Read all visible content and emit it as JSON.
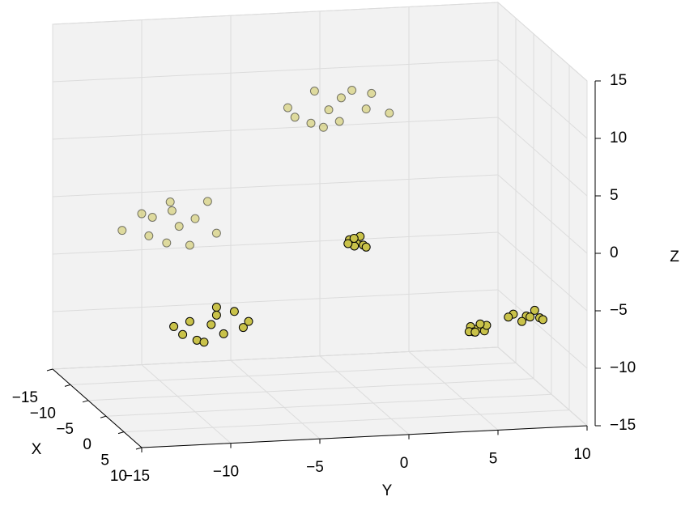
{
  "chart_data": {
    "type": "scatter3d",
    "xlabel": "X",
    "ylabel": "Y",
    "zlabel": "Z",
    "xlim": [
      -15,
      10
    ],
    "ylim": [
      -15,
      10
    ],
    "zlim": [
      -15,
      15
    ],
    "xticks": [
      {
        "value": -15,
        "label": "−15"
      },
      {
        "value": -10,
        "label": "−10"
      },
      {
        "value": -5,
        "label": "−5"
      },
      0,
      5,
      10
    ],
    "yticks": [
      {
        "value": -15,
        "label": "−15"
      },
      {
        "value": -10,
        "label": "−10"
      },
      {
        "value": -5,
        "label": "−5"
      },
      0,
      5,
      10
    ],
    "zticks": [
      {
        "value": -15,
        "label": "−15"
      },
      {
        "value": -10,
        "label": "−10"
      },
      {
        "value": -5,
        "label": "−5"
      },
      0,
      5,
      10,
      15
    ],
    "grid": true,
    "color": "#c9c24a",
    "x": [
      -8,
      -7.5,
      -8.5,
      -7,
      -8,
      -9,
      -7.5,
      -8.5,
      -8,
      -7,
      -9,
      -8,
      -8,
      -7.5,
      -8.5,
      -7,
      -8,
      -9,
      -7.5,
      -8.5,
      -8,
      -7,
      -9,
      -8,
      0,
      0.3,
      -0.3,
      0.2,
      -0.2,
      0.4,
      0,
      -0.4,
      2,
      2.5,
      1.5,
      2,
      3,
      1,
      2.5,
      1.5,
      2,
      3,
      1,
      2,
      2,
      2.3,
      1.7,
      2.2,
      1.8,
      2,
      2.4,
      1.6,
      2,
      2.3,
      1.7,
      2.2,
      1.8,
      2,
      2.4,
      1.6
    ],
    "y": [
      -0.9,
      -3.3,
      1.6,
      -2.1,
      0.4,
      -1.5,
      2.4,
      -0.2,
      -2.8,
      1.0,
      0.0,
      -1.2,
      -9.3,
      -11.5,
      -7.6,
      -10.2,
      -8.4,
      -12.3,
      -9.9,
      -7.1,
      -10.8,
      -8.9,
      -9.5,
      -11.0,
      -0.95,
      -1.4,
      -0.5,
      -1.1,
      -0.7,
      -1.5,
      -0.4,
      -1.0,
      -9.5,
      -11.2,
      -8.1,
      -10.3,
      -7.9,
      -9.0,
      -10.8,
      -8.7,
      -9.9,
      -7.6,
      -11.4,
      -9.2,
      5.46,
      5.0,
      5.9,
      5.2,
      6.0,
      5.6,
      4.9,
      5.4,
      8.19,
      7.4,
      9.0,
      7.9,
      8.7,
      8.4,
      7.1,
      9.2
    ],
    "z": [
      8.4,
      8.9,
      9.5,
      7.6,
      10.0,
      9.8,
      8.0,
      7.2,
      7.9,
      8.6,
      9.1,
      6.9,
      -1.1,
      0.3,
      0.8,
      -2.2,
      -0.5,
      -1.5,
      1.2,
      -2.0,
      -0.2,
      -2.5,
      0.0,
      -1.8,
      -0.98,
      -0.6,
      -1.3,
      -1.2,
      -0.5,
      -0.9,
      -1.4,
      -0.7,
      -6.9,
      -7.5,
      -6.0,
      -8.2,
      -7.0,
      -5.7,
      -6.4,
      -7.9,
      -8.4,
      -6.5,
      -7.2,
      -6.1,
      -8.4,
      -8.1,
      -8.7,
      -8.6,
      -8.2,
      -8.0,
      -8.5,
      -8.8,
      -7.5,
      -7.2,
      -7.8,
      -7.9,
      -7.1,
      -7.6,
      -7.4,
      -8.0
    ]
  }
}
